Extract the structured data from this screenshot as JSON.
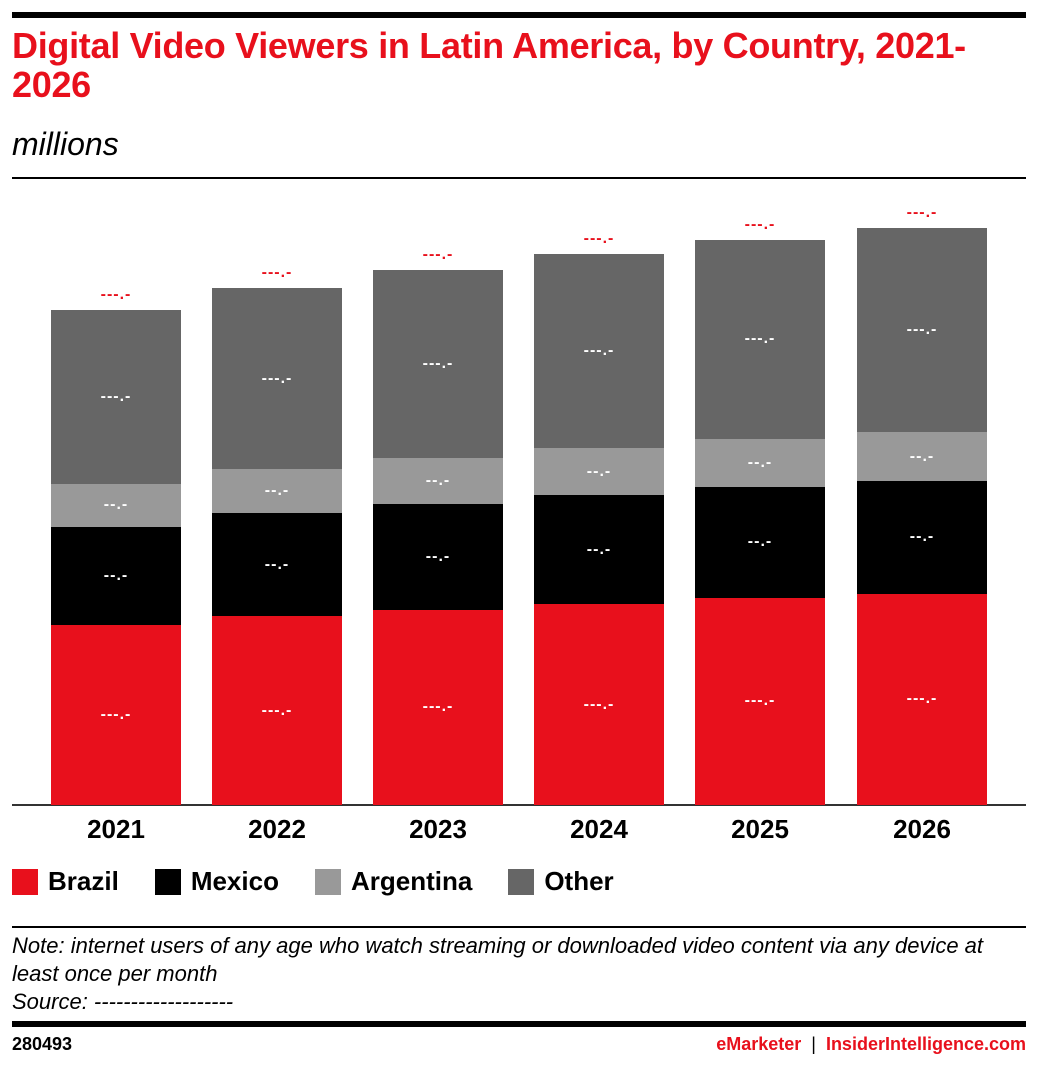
{
  "header": {
    "title": "Digital Video Viewers in Latin America, by Country, 2021-2026",
    "subtitle": "millions"
  },
  "colors": {
    "brazil": "#e8101c",
    "mexico": "#000000",
    "argentina": "#999999",
    "other": "#666666",
    "accent": "#e8101c"
  },
  "legend": [
    {
      "label": "Brazil",
      "color": "#e8101c"
    },
    {
      "label": "Mexico",
      "color": "#000000"
    },
    {
      "label": "Argentina",
      "color": "#999999"
    },
    {
      "label": "Other",
      "color": "#666666"
    }
  ],
  "bars": [
    {
      "year": "2021",
      "total_label": "---.-",
      "labels": {
        "brazil": "---.-",
        "mexico": "--.-",
        "argentina": "--.-",
        "other": "---.-"
      }
    },
    {
      "year": "2022",
      "total_label": "---.-",
      "labels": {
        "brazil": "---.-",
        "mexico": "--.-",
        "argentina": "--.-",
        "other": "---.-"
      }
    },
    {
      "year": "2023",
      "total_label": "---.-",
      "labels": {
        "brazil": "---.-",
        "mexico": "--.-",
        "argentina": "--.-",
        "other": "---.-"
      }
    },
    {
      "year": "2024",
      "total_label": "---.-",
      "labels": {
        "brazil": "---.-",
        "mexico": "--.-",
        "argentina": "--.-",
        "other": "---.-"
      }
    },
    {
      "year": "2025",
      "total_label": "---.-",
      "labels": {
        "brazil": "---.-",
        "mexico": "--.-",
        "argentina": "--.-",
        "other": "---.-"
      }
    },
    {
      "year": "2026",
      "total_label": "---.-",
      "labels": {
        "brazil": "---.-",
        "mexico": "--.-",
        "argentina": "--.-",
        "other": "---.-"
      }
    }
  ],
  "chart_data": {
    "type": "bar",
    "stacked": true,
    "title": "Digital Video Viewers in Latin America, by Country, 2021-2026",
    "subtitle": "millions",
    "xlabel": "",
    "ylabel": "millions",
    "categories": [
      "2021",
      "2022",
      "2023",
      "2024",
      "2025",
      "2026"
    ],
    "series": [
      {
        "name": "Brazil",
        "values": [
          112.5,
          118.1,
          121.9,
          125.6,
          129.4,
          131.9
        ]
      },
      {
        "name": "Mexico",
        "values": [
          61.3,
          64.4,
          66.3,
          68.1,
          69.4,
          70.6
        ]
      },
      {
        "name": "Argentina",
        "values": [
          26.9,
          27.5,
          28.8,
          29.4,
          30.0,
          30.6
        ]
      },
      {
        "name": "Other",
        "values": [
          108.8,
          113.1,
          117.5,
          121.3,
          124.4,
          127.5
        ]
      }
    ],
    "totals": [
      309.4,
      323.1,
      334.4,
      344.4,
      353.1,
      360.6
    ],
    "data_labels_masked": "---.-",
    "legend_position": "bottom",
    "grid": false,
    "note": "values estimated from bar pixel heights; on-chart labels are masked"
  },
  "footer": {
    "note": "Note: internet users of any age who watch streaming or downloaded video content via any device at least once per month",
    "source": "Source: -------------------",
    "chart_id": "280493",
    "brand_left": "eMarketer",
    "brand_sep": "|",
    "brand_right": "InsiderIntelligence.com"
  }
}
